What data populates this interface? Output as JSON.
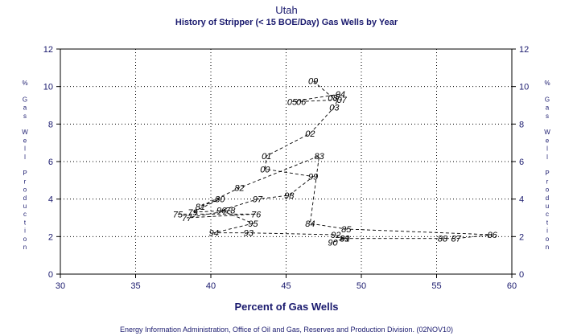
{
  "colors": {
    "text": "#1a1a6e",
    "ink": "#000000",
    "background": "#ffffff"
  },
  "chart_data": {
    "type": "line",
    "title": "Utah",
    "subtitle": "History of Stripper (< 15 BOE/Day) Gas Wells by Year",
    "xlabel": "Percent of Gas Wells",
    "ylabel": "% Gas Well Production",
    "ylabel_right": "% Gas Well Production",
    "xlim": [
      30,
      60
    ],
    "ylim": [
      0,
      12
    ],
    "x_ticks": [
      30,
      35,
      40,
      45,
      50,
      55,
      60
    ],
    "y_ticks": [
      0,
      2,
      4,
      6,
      8,
      10,
      12
    ],
    "grid": true,
    "line_style": "dashed",
    "points": [
      {
        "label": "75",
        "x": 37.8,
        "y": 3.2
      },
      {
        "label": "76",
        "x": 43.0,
        "y": 3.2
      },
      {
        "label": "77",
        "x": 38.4,
        "y": 3.0
      },
      {
        "label": "78",
        "x": 41.3,
        "y": 3.4
      },
      {
        "label": "79",
        "x": 38.8,
        "y": 3.3
      },
      {
        "label": "80",
        "x": 40.6,
        "y": 4.0
      },
      {
        "label": "81",
        "x": 39.3,
        "y": 3.6
      },
      {
        "label": "82",
        "x": 41.9,
        "y": 4.6
      },
      {
        "label": "83",
        "x": 47.2,
        "y": 6.3
      },
      {
        "label": "84",
        "x": 46.6,
        "y": 2.7
      },
      {
        "label": "85",
        "x": 49.0,
        "y": 2.4
      },
      {
        "label": "86",
        "x": 58.7,
        "y": 2.1
      },
      {
        "label": "87",
        "x": 56.3,
        "y": 1.9
      },
      {
        "label": "88",
        "x": 55.4,
        "y": 1.9
      },
      {
        "label": "89",
        "x": 48.9,
        "y": 1.9
      },
      {
        "label": "90",
        "x": 48.1,
        "y": 1.7
      },
      {
        "label": "91",
        "x": 48.9,
        "y": 1.9
      },
      {
        "label": "92",
        "x": 48.3,
        "y": 2.1
      },
      {
        "label": "93",
        "x": 42.5,
        "y": 2.2
      },
      {
        "label": "94",
        "x": 40.2,
        "y": 2.2
      },
      {
        "label": "95",
        "x": 42.8,
        "y": 2.7
      },
      {
        "label": "96",
        "x": 40.7,
        "y": 3.4
      },
      {
        "label": "97",
        "x": 43.1,
        "y": 4.0
      },
      {
        "label": "98",
        "x": 45.2,
        "y": 4.2
      },
      {
        "label": "99",
        "x": 46.8,
        "y": 5.2
      },
      {
        "label": "00",
        "x": 43.6,
        "y": 5.6
      },
      {
        "label": "01",
        "x": 43.7,
        "y": 6.3
      },
      {
        "label": "02",
        "x": 46.6,
        "y": 7.5
      },
      {
        "label": "03",
        "x": 48.2,
        "y": 8.9
      },
      {
        "label": "04",
        "x": 48.6,
        "y": 9.6
      },
      {
        "label": "05",
        "x": 45.4,
        "y": 9.2
      },
      {
        "label": "06",
        "x": 46.0,
        "y": 9.2
      },
      {
        "label": "07",
        "x": 48.7,
        "y": 9.3
      },
      {
        "label": "08",
        "x": 48.1,
        "y": 9.4
      },
      {
        "label": "09",
        "x": 46.8,
        "y": 10.3
      }
    ]
  },
  "footnote": "Energy Information Administration, Office of Oil and Gas, Reserves and Production Division. (02NOV10)"
}
